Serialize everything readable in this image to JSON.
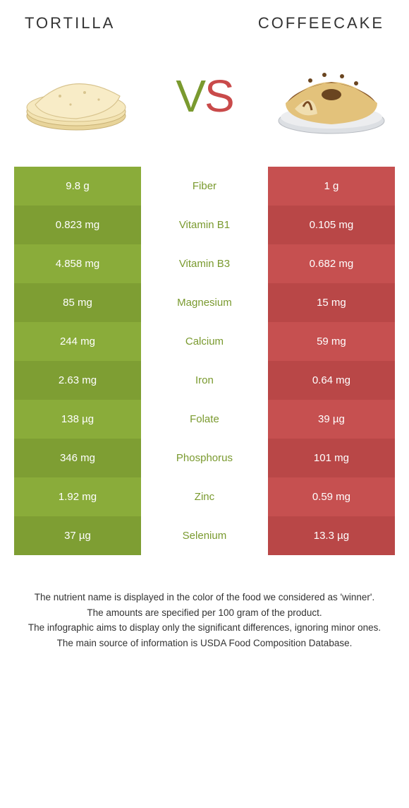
{
  "header": {
    "left_title": "Tortilla",
    "right_title": "Coffeecake"
  },
  "vs": {
    "v": "V",
    "s": "S"
  },
  "colors": {
    "left_primary": "#8aac3a",
    "left_alt": "#7e9e33",
    "right_primary": "#c65050",
    "right_alt": "#b94747",
    "nutrient_left": "#7a9a2f",
    "nutrient_right": "#c94a4a"
  },
  "rows": [
    {
      "left": "9.8 g",
      "label": "Fiber",
      "right": "1 g",
      "winner": "left"
    },
    {
      "left": "0.823 mg",
      "label": "Vitamin B1",
      "right": "0.105 mg",
      "winner": "left"
    },
    {
      "left": "4.858 mg",
      "label": "Vitamin B3",
      "right": "0.682 mg",
      "winner": "left"
    },
    {
      "left": "85 mg",
      "label": "Magnesium",
      "right": "15 mg",
      "winner": "left"
    },
    {
      "left": "244 mg",
      "label": "Calcium",
      "right": "59 mg",
      "winner": "left"
    },
    {
      "left": "2.63 mg",
      "label": "Iron",
      "right": "0.64 mg",
      "winner": "left"
    },
    {
      "left": "138 µg",
      "label": "Folate",
      "right": "39 µg",
      "winner": "left"
    },
    {
      "left": "346 mg",
      "label": "Phosphorus",
      "right": "101 mg",
      "winner": "left"
    },
    {
      "left": "1.92 mg",
      "label": "Zinc",
      "right": "0.59 mg",
      "winner": "left"
    },
    {
      "left": "37 µg",
      "label": "Selenium",
      "right": "13.3 µg",
      "winner": "left"
    }
  ],
  "footnote": {
    "l1": "The nutrient name is displayed in the color of the food we considered as 'winner'.",
    "l2": "The amounts are specified per 100 gram of the product.",
    "l3": "The infographic aims to display only the significant differences, ignoring minor ones.",
    "l4": "The main source of information is USDA Food Composition Database."
  }
}
